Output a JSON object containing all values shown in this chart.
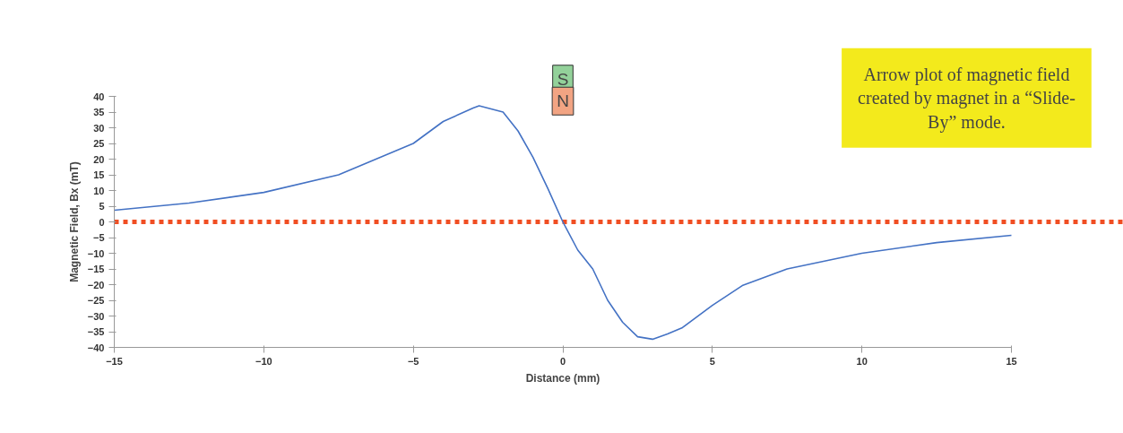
{
  "chart_data": {
    "type": "line",
    "xlabel": "Distance (mm)",
    "ylabel": "Magnetic Field, Bx (mT)",
    "x": [
      -15,
      -12.5,
      -10,
      -7.5,
      -5,
      -4,
      -3,
      -2.8,
      -2,
      -1.5,
      -1,
      -0.5,
      0,
      0.5,
      1,
      1.5,
      2,
      2.5,
      3,
      3.5,
      4,
      5,
      6,
      7.5,
      10,
      12.5,
      15
    ],
    "series": [
      {
        "color": "#4472c4",
        "values": [
          3.7,
          6,
          9.4,
          15,
          25,
          32,
          36.3,
          37,
          35,
          29,
          20.6,
          10.6,
          0,
          -9,
          -15,
          -25,
          -32,
          -36.6,
          -37.4,
          -35.7,
          -33.7,
          -26.6,
          -20.3,
          -15,
          -10,
          -6.6,
          -4.3
        ]
      }
    ],
    "xlim": [
      -15,
      15
    ],
    "xticks": [
      -15,
      -10,
      -5,
      0,
      5,
      10,
      15
    ],
    "ylim": [
      -40,
      40
    ],
    "yticks": [
      -40,
      -35,
      -30,
      -25,
      -20,
      -15,
      -10,
      -5,
      0,
      5,
      10,
      15,
      20,
      25,
      30,
      35,
      40
    ],
    "ref_lines": [
      {
        "axis": "y",
        "value": 0,
        "color": "#f04e23",
        "line_style": "dotted"
      }
    ],
    "annotations": [
      "S",
      "N",
      "Arrow plot of magnetic field created by magnet in a “Slide-By” mode."
    ],
    "grid": false,
    "marker": "none",
    "line_style": "solid"
  }
}
